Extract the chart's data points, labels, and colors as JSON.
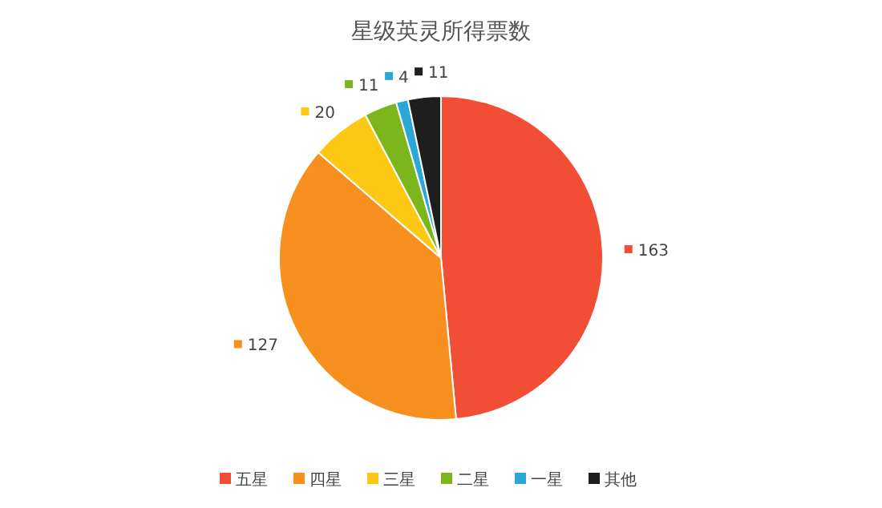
{
  "chart_data": {
    "type": "pie",
    "title": "星级英灵所得票数",
    "categories": [
      "五星",
      "四星",
      "三星",
      "二星",
      "一星",
      "其他"
    ],
    "values": [
      163,
      127,
      20,
      11,
      4,
      11
    ],
    "colors": [
      "#f24e36",
      "#f7901e",
      "#fcc814",
      "#7cb51c",
      "#2aa7d6",
      "#1e1e1e"
    ],
    "data_labels": true,
    "legend": "bottom"
  }
}
